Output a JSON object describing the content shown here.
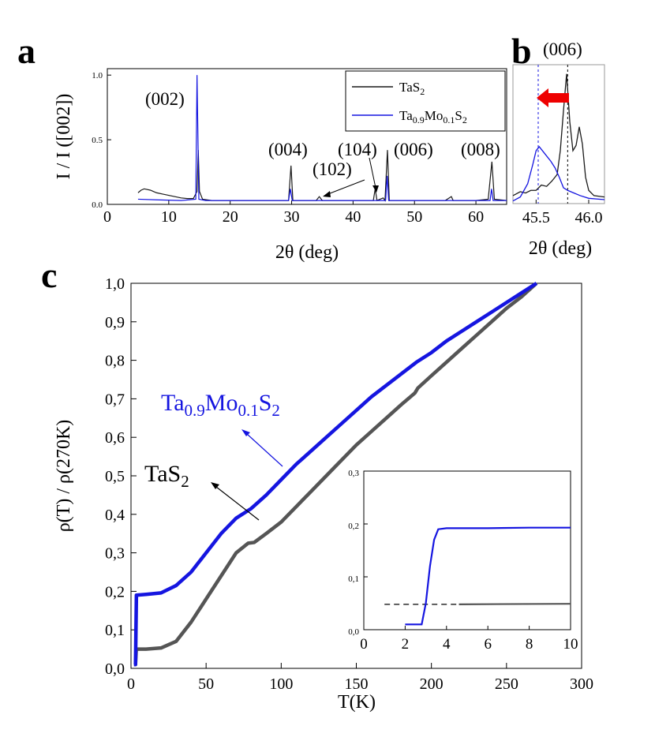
{
  "panels": {
    "a": "a",
    "b": "b",
    "c": "c"
  },
  "colors": {
    "tas2": "#1a1a1a",
    "tas2_c": "#555555",
    "tamo": "#1515e0",
    "arrow_red": "#ee0000"
  },
  "chart_data": [
    {
      "id": "a",
      "type": "line",
      "title": "",
      "xlabel": "2θ (deg)",
      "ylabel": "I / I ([002])",
      "xlim": [
        0,
        65
      ],
      "ylim": [
        0,
        1.05
      ],
      "xticks": [
        "0",
        "10",
        "20",
        "30",
        "40",
        "50",
        "60"
      ],
      "yticks": [
        "0.0",
        "0.5",
        "1.0"
      ],
      "legend": {
        "position": "top-right",
        "entries": [
          {
            "base": "TaS",
            "sub": "2",
            "tail": "",
            "sub2": ""
          },
          {
            "base": "Ta",
            "sub": "0.9",
            "tail": "Mo",
            "sub2": "0.1",
            "tail2": "S",
            "sub3": "2"
          }
        ]
      },
      "peak_labels": [
        "(002)",
        "(004)",
        "(102)",
        "(104)",
        "(006)",
        "(008)"
      ],
      "series": [
        {
          "name": "TaS2",
          "points": [
            [
              5,
              0.09
            ],
            [
              5.5,
              0.11
            ],
            [
              6,
              0.12
            ],
            [
              7,
              0.11
            ],
            [
              8,
              0.09
            ],
            [
              9,
              0.08
            ],
            [
              10,
              0.07
            ],
            [
              11,
              0.06
            ],
            [
              12,
              0.05
            ],
            [
              13,
              0.045
            ],
            [
              14,
              0.045
            ],
            [
              14.6,
              0.1
            ],
            [
              14.8,
              0.42
            ],
            [
              15,
              0.1
            ],
            [
              15.5,
              0.04
            ],
            [
              17,
              0.03
            ],
            [
              20,
              0.03
            ],
            [
              25,
              0.03
            ],
            [
              29.5,
              0.03
            ],
            [
              29.9,
              0.3
            ],
            [
              30.2,
              0.03
            ],
            [
              34,
              0.03
            ],
            [
              34.5,
              0.06
            ],
            [
              35,
              0.03
            ],
            [
              40,
              0.03
            ],
            [
              43.3,
              0.03
            ],
            [
              43.6,
              0.12
            ],
            [
              43.9,
              0.03
            ],
            [
              44.9,
              0.05
            ],
            [
              45.2,
              0.03
            ],
            [
              45.6,
              0.42
            ],
            [
              45.9,
              0.03
            ],
            [
              50,
              0.03
            ],
            [
              55,
              0.03
            ],
            [
              56,
              0.06
            ],
            [
              56.3,
              0.03
            ],
            [
              60,
              0.03
            ],
            [
              62,
              0.04
            ],
            [
              62.6,
              0.33
            ],
            [
              63,
              0.04
            ],
            [
              65,
              0.03
            ]
          ]
        },
        {
          "name": "Ta0.9Mo0.1S2",
          "points": [
            [
              5,
              0.04
            ],
            [
              8,
              0.035
            ],
            [
              12,
              0.03
            ],
            [
              14.4,
              0.04
            ],
            [
              14.6,
              1.0
            ],
            [
              14.9,
              0.04
            ],
            [
              16,
              0.03
            ],
            [
              20,
              0.03
            ],
            [
              25,
              0.03
            ],
            [
              29.5,
              0.03
            ],
            [
              29.8,
              0.12
            ],
            [
              30.1,
              0.03
            ],
            [
              40,
              0.03
            ],
            [
              45.3,
              0.03
            ],
            [
              45.55,
              0.22
            ],
            [
              45.8,
              0.03
            ],
            [
              50,
              0.03
            ],
            [
              55,
              0.03
            ],
            [
              60,
              0.03
            ],
            [
              62.3,
              0.03
            ],
            [
              62.55,
              0.12
            ],
            [
              62.8,
              0.03
            ],
            [
              65,
              0.03
            ]
          ]
        }
      ]
    },
    {
      "id": "b",
      "type": "line",
      "title": "(006)",
      "xlabel": "2θ (deg)",
      "ylabel": "",
      "xlim": [
        45.28,
        46.15
      ],
      "ylim": [
        0,
        1.05
      ],
      "xticks": [
        "45.5",
        "46.0"
      ],
      "vlines": [
        45.52,
        45.8
      ],
      "series": [
        {
          "name": "TaS2",
          "points": [
            [
              45.28,
              0.06
            ],
            [
              45.35,
              0.09
            ],
            [
              45.4,
              0.08
            ],
            [
              45.45,
              0.1
            ],
            [
              45.5,
              0.1
            ],
            [
              45.55,
              0.14
            ],
            [
              45.6,
              0.13
            ],
            [
              45.65,
              0.17
            ],
            [
              45.7,
              0.22
            ],
            [
              45.73,
              0.4
            ],
            [
              45.76,
              0.7
            ],
            [
              45.79,
              0.98
            ],
            [
              45.82,
              0.62
            ],
            [
              45.85,
              0.4
            ],
            [
              45.88,
              0.44
            ],
            [
              45.91,
              0.58
            ],
            [
              45.94,
              0.45
            ],
            [
              45.97,
              0.2
            ],
            [
              46.0,
              0.1
            ],
            [
              46.05,
              0.06
            ],
            [
              46.15,
              0.05
            ]
          ]
        },
        {
          "name": "Ta0.9Mo0.1S2",
          "points": [
            [
              45.28,
              0.02
            ],
            [
              45.35,
              0.05
            ],
            [
              45.42,
              0.15
            ],
            [
              45.47,
              0.3
            ],
            [
              45.5,
              0.4
            ],
            [
              45.53,
              0.43
            ],
            [
              45.56,
              0.4
            ],
            [
              45.6,
              0.36
            ],
            [
              45.64,
              0.32
            ],
            [
              45.68,
              0.27
            ],
            [
              45.72,
              0.2
            ],
            [
              45.76,
              0.12
            ],
            [
              45.8,
              0.1
            ],
            [
              45.86,
              0.08
            ],
            [
              45.92,
              0.06
            ],
            [
              46.0,
              0.04
            ],
            [
              46.15,
              0.03
            ]
          ]
        }
      ]
    },
    {
      "id": "c",
      "type": "line",
      "title": "",
      "xlabel": "T(K)",
      "ylabel": "ρ(T) / ρ(270K)",
      "xlim": [
        0,
        300
      ],
      "ylim": [
        0,
        1.0
      ],
      "xticks": [
        "0",
        "50",
        "100",
        "150",
        "200",
        "250",
        "300"
      ],
      "yticks": [
        "0,0",
        "0,1",
        "0,2",
        "0,3",
        "0,4",
        "0,5",
        "0,6",
        "0,7",
        "0,8",
        "0,9",
        "1,0"
      ],
      "annotations": {
        "tamo": {
          "base": "Ta",
          "sub": "0.9",
          "tail": "Mo",
          "sub2": "0.1",
          "tail2": "S",
          "sub3": "2"
        },
        "tas2": {
          "base": "TaS",
          "sub": "2"
        }
      },
      "series": [
        {
          "name": "TaS2",
          "points": [
            [
              2,
              0.01
            ],
            [
              3,
              0.01
            ],
            [
              3.5,
              0.05
            ],
            [
              10,
              0.05
            ],
            [
              20,
              0.053
            ],
            [
              30,
              0.07
            ],
            [
              40,
              0.12
            ],
            [
              50,
              0.18
            ],
            [
              60,
              0.24
            ],
            [
              70,
              0.3
            ],
            [
              78,
              0.325
            ],
            [
              82,
              0.327
            ],
            [
              90,
              0.35
            ],
            [
              100,
              0.38
            ],
            [
              110,
              0.42
            ],
            [
              120,
              0.46
            ],
            [
              130,
              0.5
            ],
            [
              140,
              0.54
            ],
            [
              150,
              0.58
            ],
            [
              160,
              0.615
            ],
            [
              170,
              0.65
            ],
            [
              180,
              0.685
            ],
            [
              189,
              0.715
            ],
            [
              191,
              0.728
            ],
            [
              200,
              0.76
            ],
            [
              210,
              0.795
            ],
            [
              220,
              0.83
            ],
            [
              230,
              0.865
            ],
            [
              240,
              0.9
            ],
            [
              250,
              0.935
            ],
            [
              260,
              0.965
            ],
            [
              270,
              1.0
            ]
          ]
        },
        {
          "name": "Ta0.9Mo0.1S2",
          "points": [
            [
              2,
              0.01
            ],
            [
              3,
              0.01
            ],
            [
              3.6,
              0.19
            ],
            [
              10,
              0.192
            ],
            [
              20,
              0.196
            ],
            [
              30,
              0.215
            ],
            [
              40,
              0.25
            ],
            [
              50,
              0.3
            ],
            [
              60,
              0.35
            ],
            [
              70,
              0.39
            ],
            [
              80,
              0.415
            ],
            [
              90,
              0.45
            ],
            [
              100,
              0.49
            ],
            [
              110,
              0.53
            ],
            [
              120,
              0.565
            ],
            [
              130,
              0.6
            ],
            [
              140,
              0.635
            ],
            [
              150,
              0.67
            ],
            [
              160,
              0.705
            ],
            [
              170,
              0.735
            ],
            [
              180,
              0.765
            ],
            [
              190,
              0.795
            ],
            [
              200,
              0.82
            ],
            [
              210,
              0.85
            ],
            [
              220,
              0.875
            ],
            [
              230,
              0.9
            ],
            [
              240,
              0.925
            ],
            [
              250,
              0.95
            ],
            [
              260,
              0.975
            ],
            [
              270,
              1.0
            ]
          ]
        }
      ]
    },
    {
      "id": "c-inset",
      "type": "line",
      "title": "",
      "xlabel": "",
      "ylabel": "",
      "xlim": [
        0,
        10
      ],
      "ylim": [
        0,
        0.3
      ],
      "xticks": [
        "0",
        "2",
        "4",
        "6",
        "8",
        "10"
      ],
      "yticks": [
        "0,0",
        "0,1",
        "0,2",
        "0,3"
      ],
      "series": [
        {
          "name": "TaS2",
          "dashed_until": 4.6,
          "points": [
            [
              1,
              0.048
            ],
            [
              4.6,
              0.048
            ],
            [
              10,
              0.049
            ]
          ]
        },
        {
          "name": "Ta0.9Mo0.1S2",
          "points": [
            [
              2,
              0.01
            ],
            [
              2.8,
              0.01
            ],
            [
              3.0,
              0.05
            ],
            [
              3.2,
              0.12
            ],
            [
              3.4,
              0.17
            ],
            [
              3.6,
              0.19
            ],
            [
              4.0,
              0.192
            ],
            [
              6,
              0.192
            ],
            [
              8,
              0.193
            ],
            [
              10,
              0.193
            ]
          ]
        }
      ]
    }
  ]
}
